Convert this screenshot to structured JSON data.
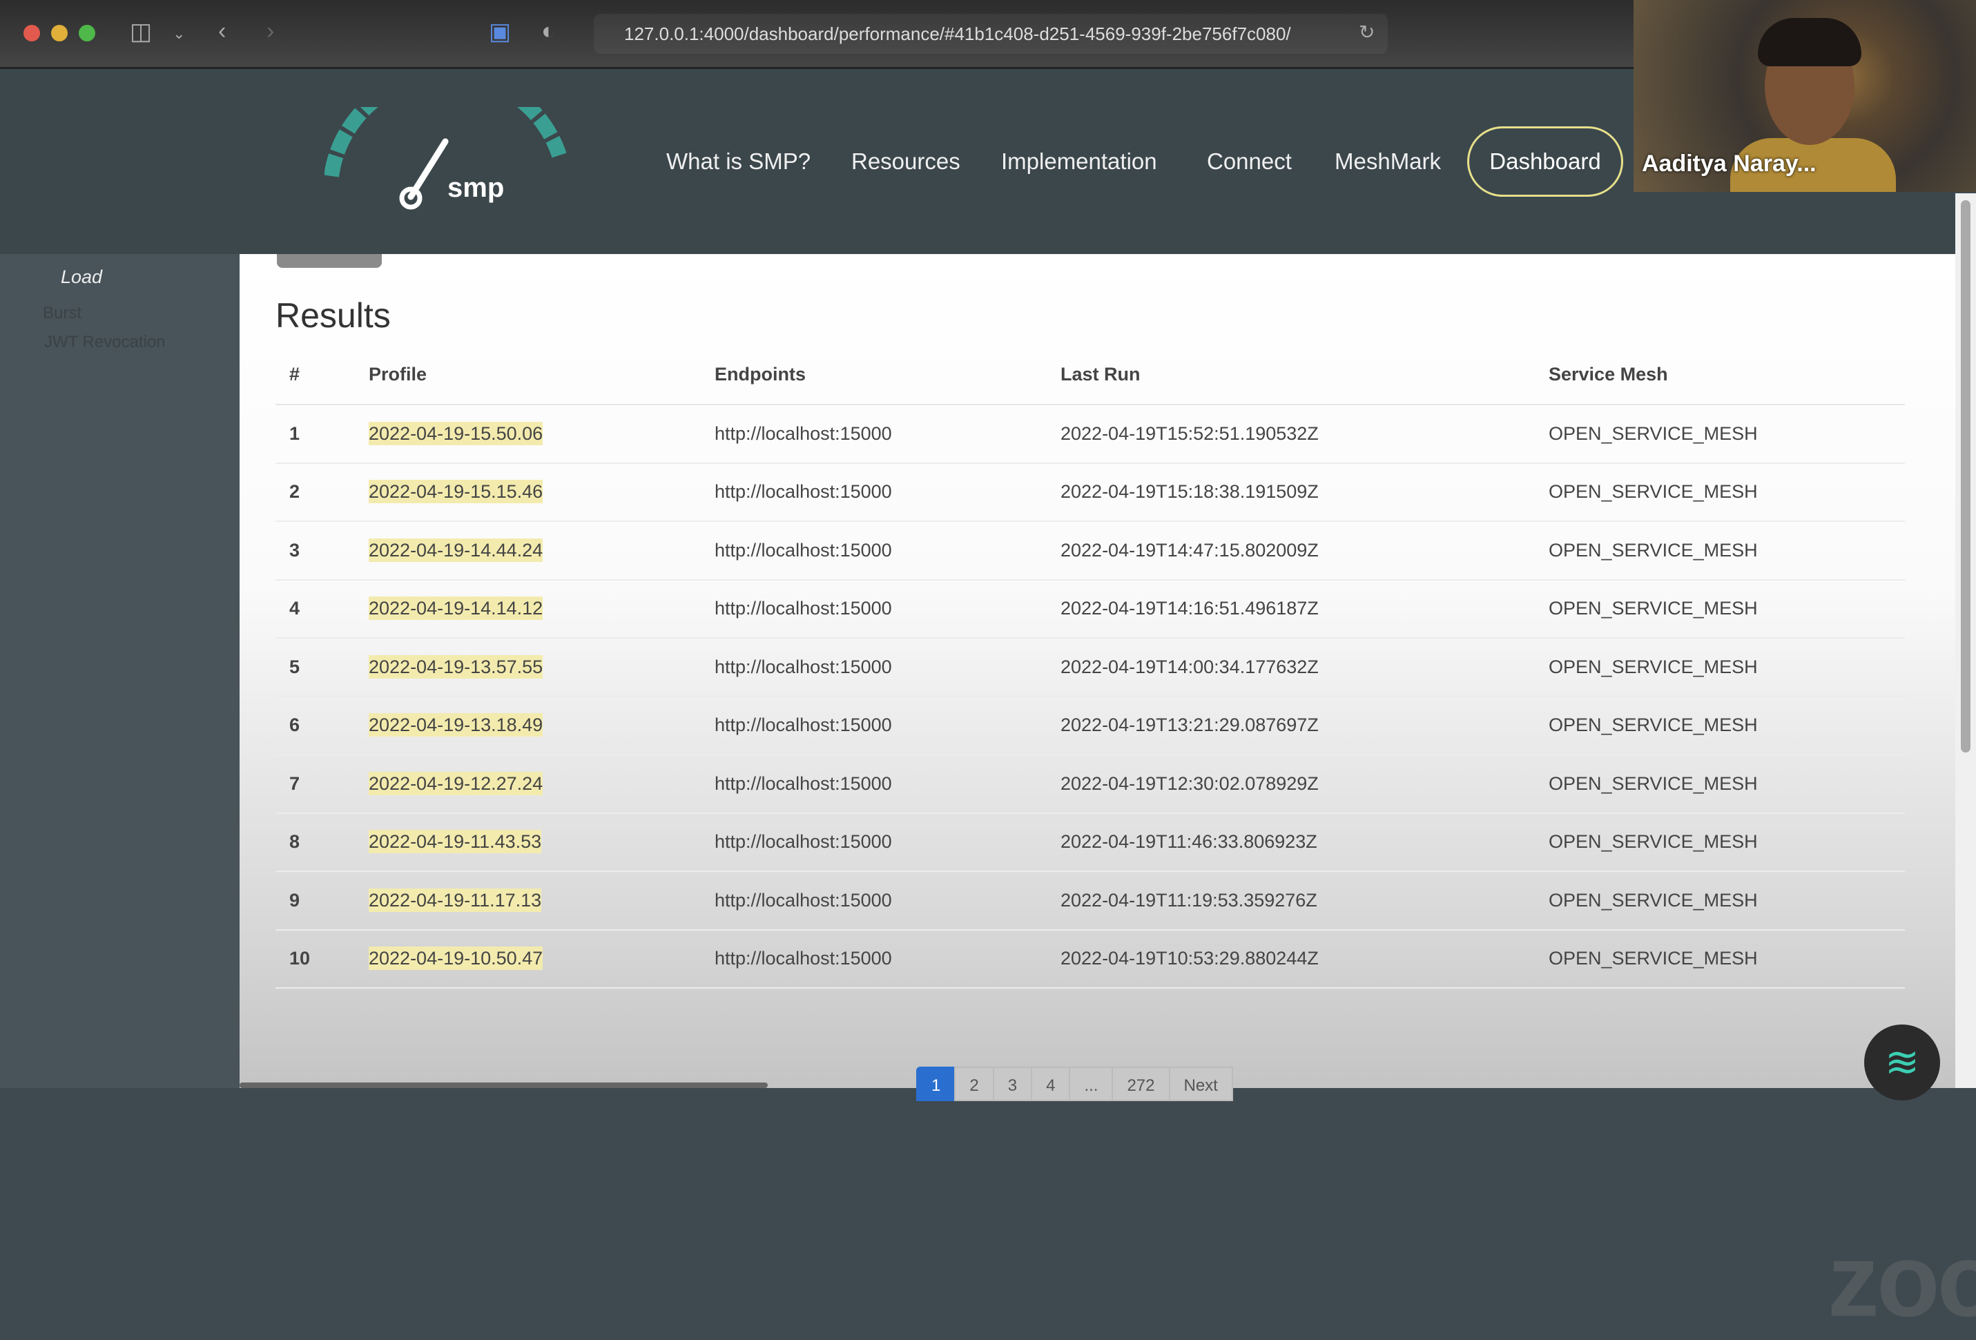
{
  "browser": {
    "url": "127.0.0.1:4000/dashboard/performance/#41b1c408-d251-4569-939f-2be756f7c080/"
  },
  "nav": {
    "logo_text": "SMP",
    "links": [
      "What is SMP?",
      "Resources",
      "Implementation",
      "Connect",
      "MeshMark"
    ],
    "dashboard": "Dashboard",
    "accent": "#e6e08a"
  },
  "video": {
    "name": "Aaditya Naray..."
  },
  "sidebar": {
    "items": [
      "Load",
      "Burst",
      "JWT Revocation"
    ]
  },
  "results": {
    "title": "Results",
    "columns": [
      "#",
      "Profile",
      "Endpoints",
      "Last Run",
      "Service Mesh"
    ],
    "rows": [
      [
        "1",
        "2022-04-19-15.50.06",
        "http://localhost:15000",
        "2022-04-19T15:52:51.190532Z",
        "OPEN_SERVICE_MESH"
      ],
      [
        "2",
        "2022-04-19-15.15.46",
        "http://localhost:15000",
        "2022-04-19T15:18:38.191509Z",
        "OPEN_SERVICE_MESH"
      ],
      [
        "3",
        "2022-04-19-14.44.24",
        "http://localhost:15000",
        "2022-04-19T14:47:15.802009Z",
        "OPEN_SERVICE_MESH"
      ],
      [
        "4",
        "2022-04-19-14.14.12",
        "http://localhost:15000",
        "2022-04-19T14:16:51.496187Z",
        "OPEN_SERVICE_MESH"
      ],
      [
        "5",
        "2022-04-19-13.57.55",
        "http://localhost:15000",
        "2022-04-19T14:00:34.177632Z",
        "OPEN_SERVICE_MESH"
      ],
      [
        "6",
        "2022-04-19-13.18.49",
        "http://localhost:15000",
        "2022-04-19T13:21:29.087697Z",
        "OPEN_SERVICE_MESH"
      ],
      [
        "7",
        "2022-04-19-12.27.24",
        "http://localhost:15000",
        "2022-04-19T12:30:02.078929Z",
        "OPEN_SERVICE_MESH"
      ],
      [
        "8",
        "2022-04-19-11.43.53",
        "http://localhost:15000",
        "2022-04-19T11:46:33.806923Z",
        "OPEN_SERVICE_MESH"
      ],
      [
        "9",
        "2022-04-19-11.17.13",
        "http://localhost:15000",
        "2022-04-19T11:19:53.359276Z",
        "OPEN_SERVICE_MESH"
      ],
      [
        "10",
        "2022-04-19-10.50.47",
        "http://localhost:15000",
        "2022-04-19T10:53:29.880244Z",
        "OPEN_SERVICE_MESH"
      ]
    ]
  },
  "pagination": {
    "pages": [
      "1",
      "2",
      "3",
      "4",
      "...",
      "272"
    ],
    "next": "Next",
    "active": "1"
  },
  "watermark": "zoom"
}
